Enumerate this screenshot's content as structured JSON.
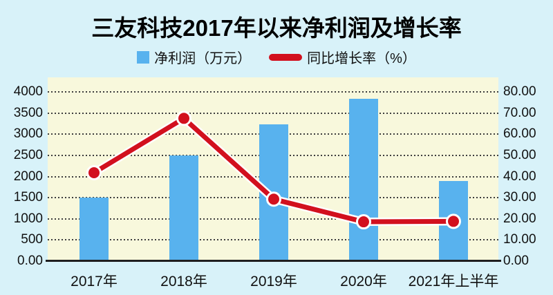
{
  "title": "三友科技2017年以来净利润及增长率",
  "legend": [
    {
      "label": "净利润（万元）",
      "color": "#58b2ee"
    },
    {
      "label": "同比增长率（%）",
      "color": "#d2101e"
    }
  ],
  "chart_data": {
    "type": "bar+line",
    "title": "三友科技2017年以来净利润及增长率",
    "categories": [
      "2017年",
      "2018年",
      "2019年",
      "2020年",
      "2021年上半年"
    ],
    "series": [
      {
        "name": "净利润（万元）",
        "type": "bar",
        "axis": "left",
        "values": [
          1500,
          2500,
          3240,
          3840,
          1900
        ]
      },
      {
        "name": "同比增长率（%）",
        "type": "line",
        "axis": "right",
        "values": [
          41.8,
          67.5,
          29.3,
          18.6,
          18.8
        ]
      }
    ],
    "left_axis": {
      "min": 0,
      "max": 4000,
      "ticks": [
        {
          "label": "4000",
          "value": 4000
        },
        {
          "label": "3500",
          "value": 3500
        },
        {
          "label": "3000",
          "value": 3000
        },
        {
          "label": "2500",
          "value": 2500
        },
        {
          "label": "2000",
          "value": 2000
        },
        {
          "label": "1500",
          "value": 1500
        },
        {
          "label": "1000",
          "value": 1000
        },
        {
          "label": "500",
          "value": 500
        },
        {
          "label": "0.00",
          "value": 0
        }
      ]
    },
    "right_axis": {
      "min": 0,
      "max": 80,
      "ticks": [
        {
          "label": "80.00",
          "value": 80
        },
        {
          "label": "70.00",
          "value": 70
        },
        {
          "label": "60.00",
          "value": 60
        },
        {
          "label": "50.00",
          "value": 50
        },
        {
          "label": "40.00",
          "value": 40
        },
        {
          "label": "30.00",
          "value": 30
        },
        {
          "label": "20.00",
          "value": 20
        },
        {
          "label": "10.00",
          "value": 10
        },
        {
          "label": "0.00",
          "value": 0
        }
      ]
    },
    "grid": "horizontal-dotted",
    "legend_position": "top",
    "colors": {
      "bar": "#58b2ee",
      "line": "#d2101e",
      "line_casing": "#ffffff",
      "marker": "#d2101e",
      "plot_bg": "#f8f8dc",
      "page_bg": "#d8f2f9",
      "axis_line": "#1f1f1f",
      "grid_color": "#3c3c3c"
    }
  }
}
